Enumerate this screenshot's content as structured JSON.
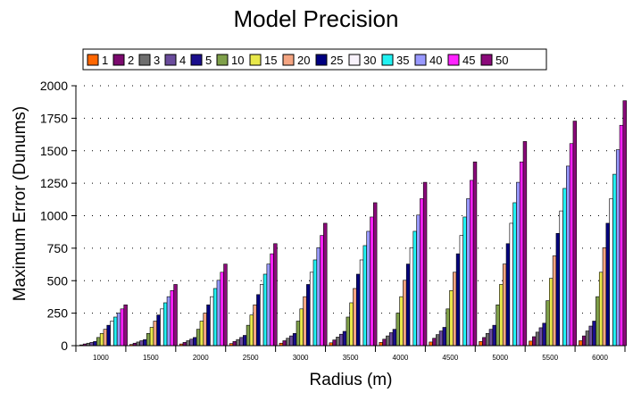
{
  "chart_data": {
    "type": "bar",
    "title": "Model Precision",
    "xlabel": "Radius (m)",
    "ylabel": "Maximum Error (Dunums)",
    "ylim": [
      0,
      2000
    ],
    "yticks": [
      "0",
      "250",
      "500",
      "750",
      "1000",
      "1250",
      "1500",
      "1750",
      "2000"
    ],
    "categories": [
      "1000",
      "1500",
      "2000",
      "2500",
      "3000",
      "3500",
      "4000",
      "4500",
      "5000",
      "5500",
      "6000"
    ],
    "grid": "dotted",
    "legend_position": "top",
    "series": [
      {
        "name": "1",
        "color": "#ff6600",
        "values": [
          6,
          9,
          13,
          16,
          19,
          22,
          25,
          28,
          32,
          35,
          38
        ]
      },
      {
        "name": "2",
        "color": "#7b0a6e",
        "values": [
          13,
          19,
          25,
          32,
          38,
          44,
          50,
          57,
          63,
          69,
          75
        ]
      },
      {
        "name": "3",
        "color": "#6e6e6e",
        "values": [
          19,
          28,
          38,
          47,
          57,
          66,
          75,
          85,
          94,
          104,
          113
        ]
      },
      {
        "name": "4",
        "color": "#6a4c9c",
        "values": [
          25,
          38,
          50,
          63,
          75,
          88,
          100,
          113,
          126,
          138,
          151
        ]
      },
      {
        "name": "5",
        "color": "#1a0e8c",
        "values": [
          32,
          47,
          63,
          79,
          94,
          110,
          126,
          141,
          157,
          173,
          189
        ]
      },
      {
        "name": "10",
        "color": "#7fa04a",
        "values": [
          63,
          94,
          126,
          157,
          189,
          220,
          251,
          283,
          314,
          346,
          377
        ]
      },
      {
        "name": "15",
        "color": "#e8e84a",
        "values": [
          94,
          141,
          189,
          236,
          283,
          330,
          377,
          424,
          471,
          518,
          565
        ]
      },
      {
        "name": "20",
        "color": "#f4a582",
        "values": [
          126,
          189,
          251,
          314,
          377,
          440,
          503,
          565,
          628,
          691,
          754
        ]
      },
      {
        "name": "25",
        "color": "#000080",
        "values": [
          157,
          236,
          314,
          393,
          471,
          550,
          628,
          707,
          785,
          864,
          942
        ]
      },
      {
        "name": "30",
        "color": "#f8f2fb",
        "values": [
          189,
          283,
          377,
          471,
          565,
          660,
          754,
          848,
          942,
          1037,
          1131
        ]
      },
      {
        "name": "35",
        "color": "#22f2f2",
        "values": [
          220,
          330,
          440,
          550,
          660,
          770,
          880,
          990,
          1100,
          1210,
          1319
        ]
      },
      {
        "name": "40",
        "color": "#9999ff",
        "values": [
          251,
          377,
          503,
          628,
          754,
          880,
          1005,
          1131,
          1257,
          1382,
          1508
        ]
      },
      {
        "name": "45",
        "color": "#ff22ff",
        "values": [
          283,
          424,
          565,
          707,
          848,
          990,
          1131,
          1272,
          1414,
          1555,
          1696
        ]
      },
      {
        "name": "50",
        "color": "#8b0a7a",
        "values": [
          314,
          471,
          628,
          785,
          942,
          1100,
          1257,
          1414,
          1571,
          1728,
          1885
        ]
      }
    ]
  }
}
